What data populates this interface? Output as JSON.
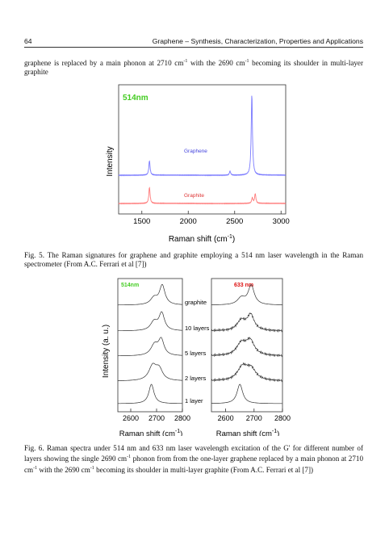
{
  "header": {
    "page_number": "64",
    "running_title": "Graphene – Synthesis, Characterization, Properties and Applications"
  },
  "intro_text": {
    "part1": "graphene is replaced by a main phonon at 2710 cm",
    "part2": " with the 2690 cm",
    "part3": " becoming its shoulder in multi-layer graphite",
    "superscript": "-1"
  },
  "figure5": {
    "caption": "Fig. 5. The Raman signatures for graphene and graphite employing a 514 nm laser wavelength in the Raman spectrometer (From A.C. Ferrari et al [7])",
    "chart_data": {
      "type": "line",
      "title": "514nm",
      "xlabel": "Raman shift (cm-1)",
      "ylabel": "Intensity",
      "xlim": [
        1250,
        3050
      ],
      "xticks": [
        "1500",
        "2000",
        "2500",
        "3000"
      ],
      "series": [
        {
          "name": "Graphene",
          "color": "#7b7bff",
          "peaks": [
            {
              "x": 1582,
              "height": 0.18
            },
            {
              "x": 2450,
              "height": 0.05
            },
            {
              "x": 2685,
              "height": 1.0
            }
          ]
        },
        {
          "name": "Graphite",
          "color": "#ff7b7b",
          "peaks": [
            {
              "x": 1582,
              "height": 0.2
            },
            {
              "x": 2690,
              "height": 0.07
            },
            {
              "x": 2722,
              "height": 0.12
            }
          ]
        }
      ]
    }
  },
  "figure6": {
    "caption": "Fig. 6. Raman spectra under 514 nm and 633 nm laser wavelength excitation of the G' for different number of layers showing the single 2690 cm",
    "caption_mid": " phonon from  from the one-layer graphene replaced by a main phonon at 2710 cm",
    "caption_mid2": " with the 2690 cm",
    "caption_end": " becoming its shoulder in multi-layer graphite (From A.C. Ferrari et al [7])",
    "chart_data": [
      {
        "type": "line",
        "title": "514nm",
        "title_color": "#44cc22",
        "xlabel": "Raman shift (cm-1)",
        "ylabel": "Intensity (a. u.)",
        "xlim": [
          2550,
          2800
        ],
        "xticks": [
          "2600",
          "2700",
          "2800"
        ],
        "series": [
          {
            "name": "graphite",
            "peaks": [
              {
                "x": 2690,
                "w": 16,
                "h": 0.35
              },
              {
                "x": 2722,
                "w": 13,
                "h": 1.0
              }
            ]
          },
          {
            "name": "10 layers",
            "peaks": [
              {
                "x": 2690,
                "w": 16,
                "h": 0.45
              },
              {
                "x": 2720,
                "w": 13,
                "h": 0.9
              }
            ]
          },
          {
            "name": "5 layers",
            "peaks": [
              {
                "x": 2692,
                "w": 17,
                "h": 0.55
              },
              {
                "x": 2718,
                "w": 13,
                "h": 0.8
              }
            ]
          },
          {
            "name": "2 layers",
            "peaks": [
              {
                "x": 2685,
                "w": 18,
                "h": 0.75
              },
              {
                "x": 2710,
                "w": 16,
                "h": 0.55
              }
            ]
          },
          {
            "name": "1 layer",
            "peaks": [
              {
                "x": 2680,
                "w": 12,
                "h": 1.0
              }
            ]
          }
        ]
      },
      {
        "type": "line",
        "title": "633 nm",
        "title_color": "#dd1111",
        "xlabel": "Raman shift (cm-1)",
        "xlim": [
          2550,
          2800
        ],
        "xticks": [
          "2600",
          "2700",
          "2800"
        ],
        "series": [
          {
            "name": "graphite",
            "peaks": [
              {
                "x": 2655,
                "w": 16,
                "h": 0.35
              },
              {
                "x": 2690,
                "w": 13,
                "h": 1.0
              }
            ]
          },
          {
            "name": "10 layers",
            "peaks": [
              {
                "x": 2655,
                "w": 18,
                "h": 0.5
              },
              {
                "x": 2688,
                "w": 15,
                "h": 0.8
              }
            ]
          },
          {
            "name": "5 layers",
            "peaks": [
              {
                "x": 2655,
                "w": 20,
                "h": 0.6
              },
              {
                "x": 2686,
                "w": 18,
                "h": 0.75
              }
            ]
          },
          {
            "name": "2 layers",
            "peaks": [
              {
                "x": 2660,
                "w": 22,
                "h": 0.7
              },
              {
                "x": 2690,
                "w": 20,
                "h": 0.55
              }
            ]
          },
          {
            "name": "1 layer",
            "peaks": [
              {
                "x": 2650,
                "w": 12,
                "h": 1.0
              }
            ]
          }
        ]
      }
    ]
  }
}
